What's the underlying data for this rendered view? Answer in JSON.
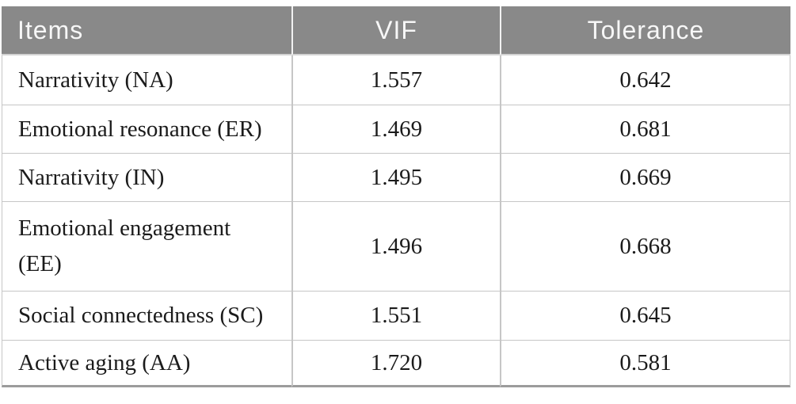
{
  "page": {
    "background_color": "#ffffff"
  },
  "table": {
    "style": {
      "header_bg": "#898989",
      "header_text_color": "#f7f7f7",
      "body_text_color": "#1b1b1b",
      "grid_line_color": "#c6c6c6",
      "bottom_rule_color": "#9c9c9c"
    },
    "columns": [
      {
        "label": "Items",
        "align": "left"
      },
      {
        "label": "VIF",
        "align": "center"
      },
      {
        "label": "Tolerance",
        "align": "center"
      }
    ],
    "rows": [
      {
        "item": "Narrativity (NA)",
        "vif": "1.557",
        "tolerance": "0.642"
      },
      {
        "item": "Emotional resonance (ER)",
        "vif": "1.469",
        "tolerance": "0.681"
      },
      {
        "item": "Narrativity (IN)",
        "vif": "1.495",
        "tolerance": "0.669"
      },
      {
        "item": "Emotional engagement\n(EE)",
        "vif": "1.496",
        "tolerance": "0.668"
      },
      {
        "item": "Social connectedness (SC)",
        "vif": "1.551",
        "tolerance": "0.645"
      },
      {
        "item": "Active aging (AA)",
        "vif": "1.720",
        "tolerance": "0.581"
      }
    ]
  }
}
